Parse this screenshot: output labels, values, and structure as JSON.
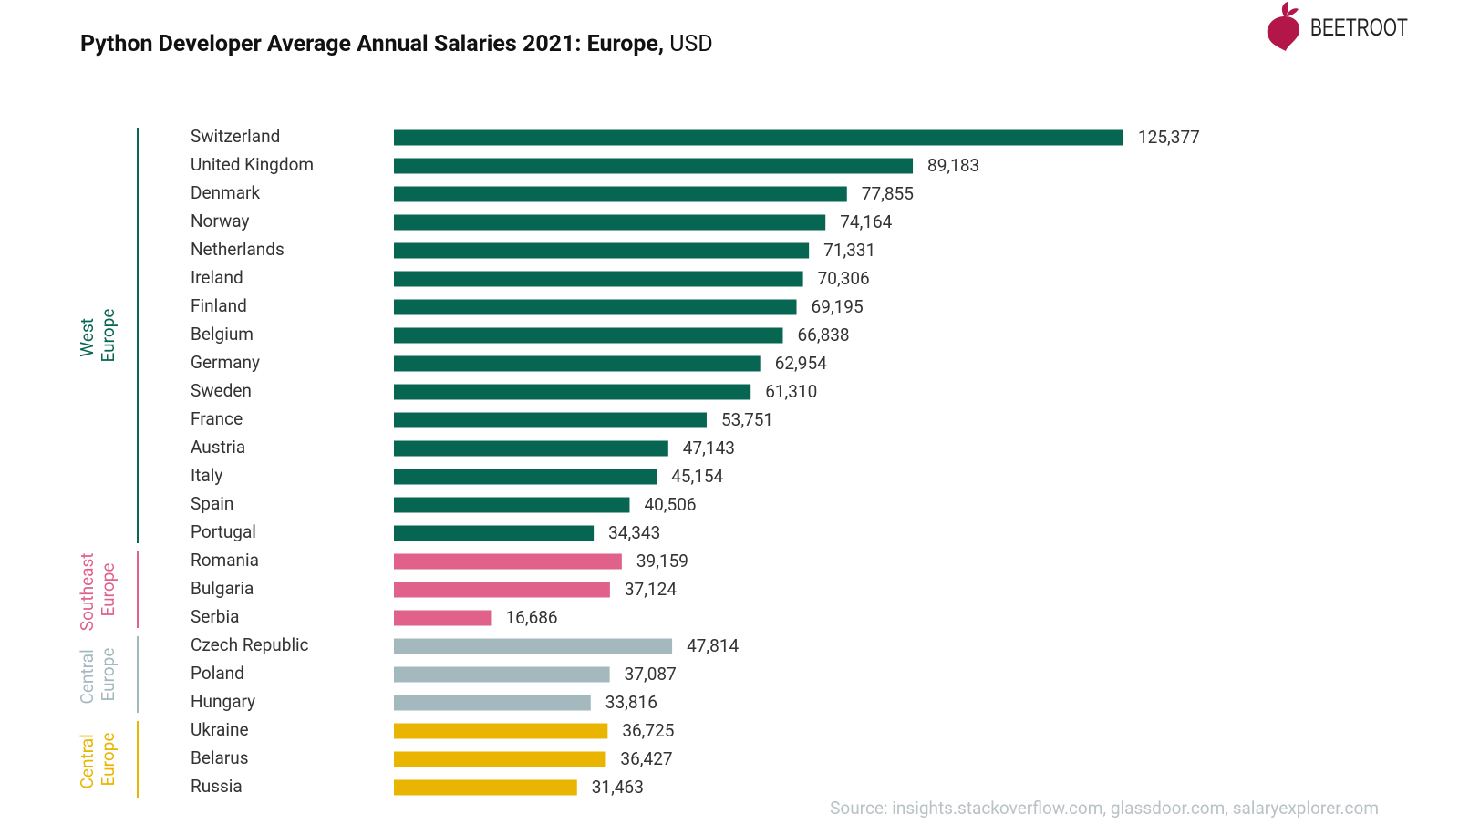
{
  "chart_data": {
    "type": "bar",
    "orientation": "horizontal",
    "title": "Python Developer Average Annual Salaries 2021: Europe,",
    "title_unit": "USD",
    "logo": "BEETROOT",
    "source": "Source: insights.stackoverflow.com, glassdoor.com, salaryexplorer.com",
    "series": [
      {
        "name": "West Europe",
        "color": "#076652",
        "categories": [
          "Switzerland",
          "United Kingdom",
          "Denmark",
          "Norway",
          "Netherlands",
          "Ireland",
          "Finland",
          "Belgium",
          "Germany",
          "Sweden",
          "France",
          "Austria",
          "Italy",
          "Spain",
          "Portugal"
        ],
        "values": [
          125377,
          89183,
          77855,
          74164,
          71331,
          70306,
          69195,
          66838,
          62954,
          61310,
          53751,
          47143,
          45154,
          40506,
          34343
        ],
        "value_labels": [
          "125,377",
          "89,183",
          "77,855",
          "74,164",
          "71,331",
          "70,306",
          "69,195",
          "66,838",
          "62,954",
          "61,310",
          "53,751",
          "47,143",
          "45,154",
          "40,506",
          "34,343"
        ]
      },
      {
        "name": "Southeast Europe",
        "color": "#e0628a",
        "categories": [
          "Romania",
          "Bulgaria",
          "Serbia"
        ],
        "values": [
          39159,
          37124,
          16686
        ],
        "value_labels": [
          "39,159",
          "37,124",
          "16,686"
        ]
      },
      {
        "name": "Central Europe",
        "color": "#a3b9bd",
        "categories": [
          "Czech Republic",
          "Poland",
          "Hungary"
        ],
        "values": [
          47814,
          37087,
          33816
        ],
        "value_labels": [
          "47,814",
          "37,087",
          "33,816"
        ]
      },
      {
        "name": "Central Europe",
        "color": "#e9b500",
        "categories": [
          "Ukraine",
          "Belarus",
          "Russia"
        ],
        "values": [
          36725,
          36427,
          31463
        ],
        "value_labels": [
          "36,725",
          "36,427",
          "31,463"
        ]
      }
    ]
  }
}
